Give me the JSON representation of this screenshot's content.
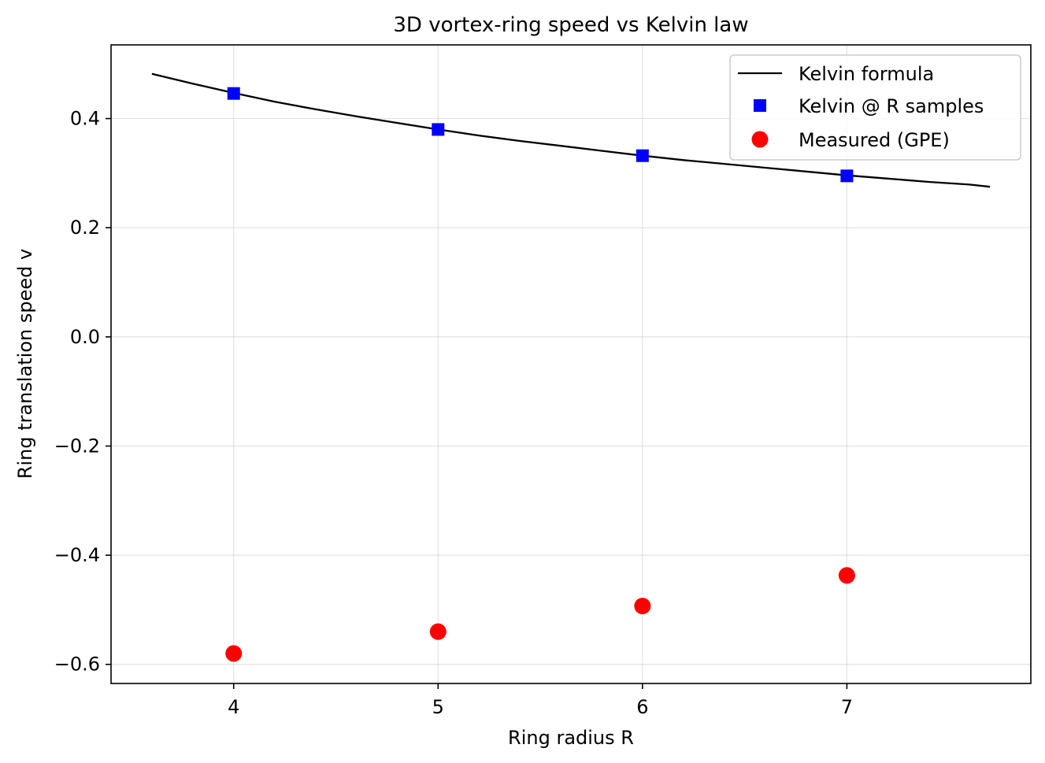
{
  "chart_data": {
    "type": "line",
    "title": "3D vortex-ring speed vs Kelvin law",
    "xlabel": "Ring radius R",
    "ylabel": "Ring translation speed v",
    "xlim": [
      3.4,
      7.9
    ],
    "ylim": [
      -0.635,
      0.535
    ],
    "xticks": [
      4,
      5,
      6,
      7
    ],
    "yticks": [
      -0.6,
      -0.4,
      -0.2,
      0.0,
      0.2,
      0.4
    ],
    "xtick_labels": [
      "4",
      "5",
      "6",
      "7"
    ],
    "ytick_labels": [
      "−0.6",
      "−0.4",
      "−0.2",
      "0.0",
      "0.2",
      "0.4"
    ],
    "grid": true,
    "legend_position": "top-right",
    "series": [
      {
        "name": "Kelvin formula",
        "kind": "line",
        "color": "#000000",
        "x": [
          3.6,
          3.8,
          4.0,
          4.2,
          4.4,
          4.6,
          4.8,
          5.0,
          5.2,
          5.4,
          5.6,
          5.8,
          6.0,
          6.2,
          6.4,
          6.6,
          6.8,
          7.0,
          7.2,
          7.4,
          7.6,
          7.7
        ],
        "y": [
          0.482,
          0.464,
          0.447,
          0.431,
          0.417,
          0.404,
          0.392,
          0.38,
          0.369,
          0.359,
          0.35,
          0.341,
          0.332,
          0.324,
          0.317,
          0.31,
          0.303,
          0.296,
          0.29,
          0.284,
          0.279,
          0.275
        ]
      },
      {
        "name": "Kelvin @ R samples",
        "kind": "square",
        "color": "#0000ff",
        "x": [
          4,
          5,
          6,
          7
        ],
        "y": [
          0.446,
          0.38,
          0.332,
          0.295
        ]
      },
      {
        "name": "Measured (GPE)",
        "kind": "circle",
        "color": "#ff0000",
        "x": [
          4,
          5,
          6,
          7
        ],
        "y": [
          -0.58,
          -0.54,
          -0.493,
          -0.437
        ]
      }
    ]
  }
}
